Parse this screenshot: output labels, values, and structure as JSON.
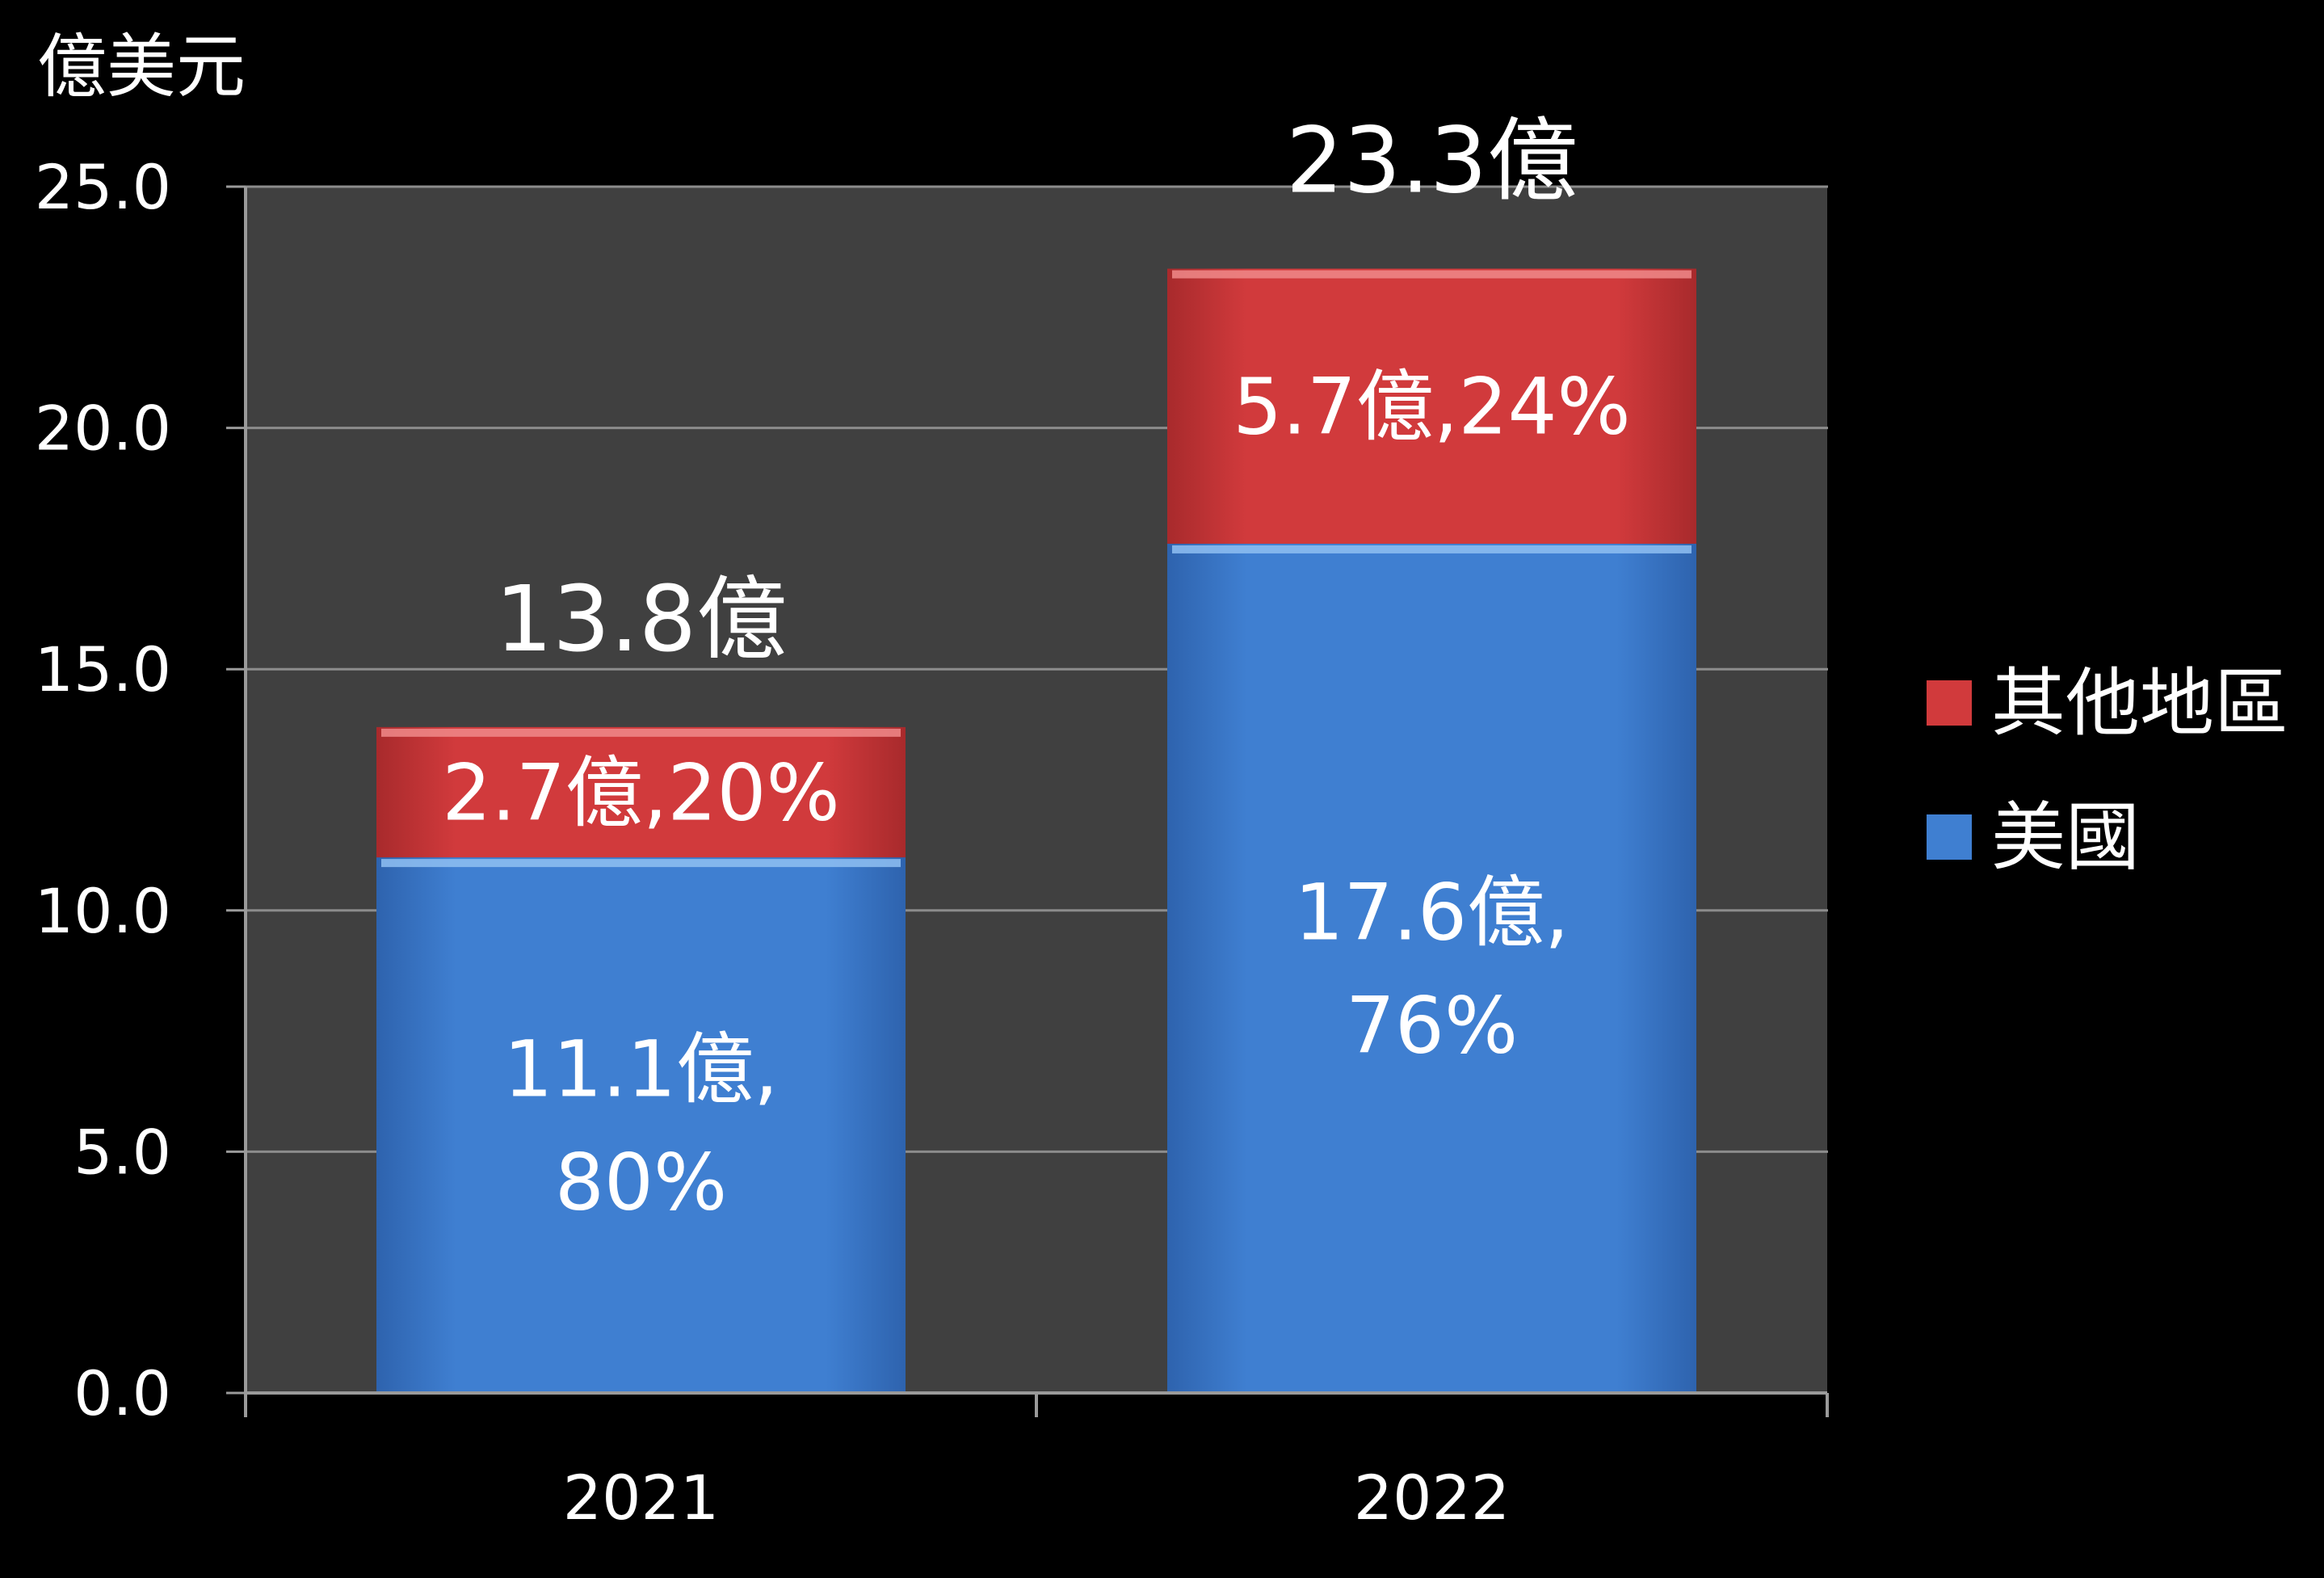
{
  "chart_data": {
    "type": "bar",
    "stacked": true,
    "ylabel": "億美元",
    "ylim": [
      0,
      25
    ],
    "yticks": [
      "0.0",
      "5.0",
      "10.0",
      "15.0",
      "20.0",
      "25.0"
    ],
    "grid": true,
    "legend_position": "right",
    "categories": [
      "2021",
      "2022"
    ],
    "series": [
      {
        "name": "美國",
        "color": "#3F7FD1",
        "values": [
          11.1,
          17.6
        ],
        "labels": [
          [
            "11.1億,",
            "80%"
          ],
          [
            "17.6億,",
            "76%"
          ]
        ]
      },
      {
        "name": "其他地區",
        "color": "#D13A3C",
        "values": [
          2.7,
          5.7
        ],
        "labels": [
          [
            "2.7億,20%"
          ],
          [
            "5.7億,24%"
          ]
        ]
      }
    ],
    "totals": [
      {
        "value": 13.8,
        "label": "13.8億"
      },
      {
        "value": 23.3,
        "label": "23.3億"
      }
    ],
    "legend": [
      {
        "name": "其他地區",
        "color": "#D13A3C"
      },
      {
        "name": "美國",
        "color": "#3F7FD1"
      }
    ]
  }
}
